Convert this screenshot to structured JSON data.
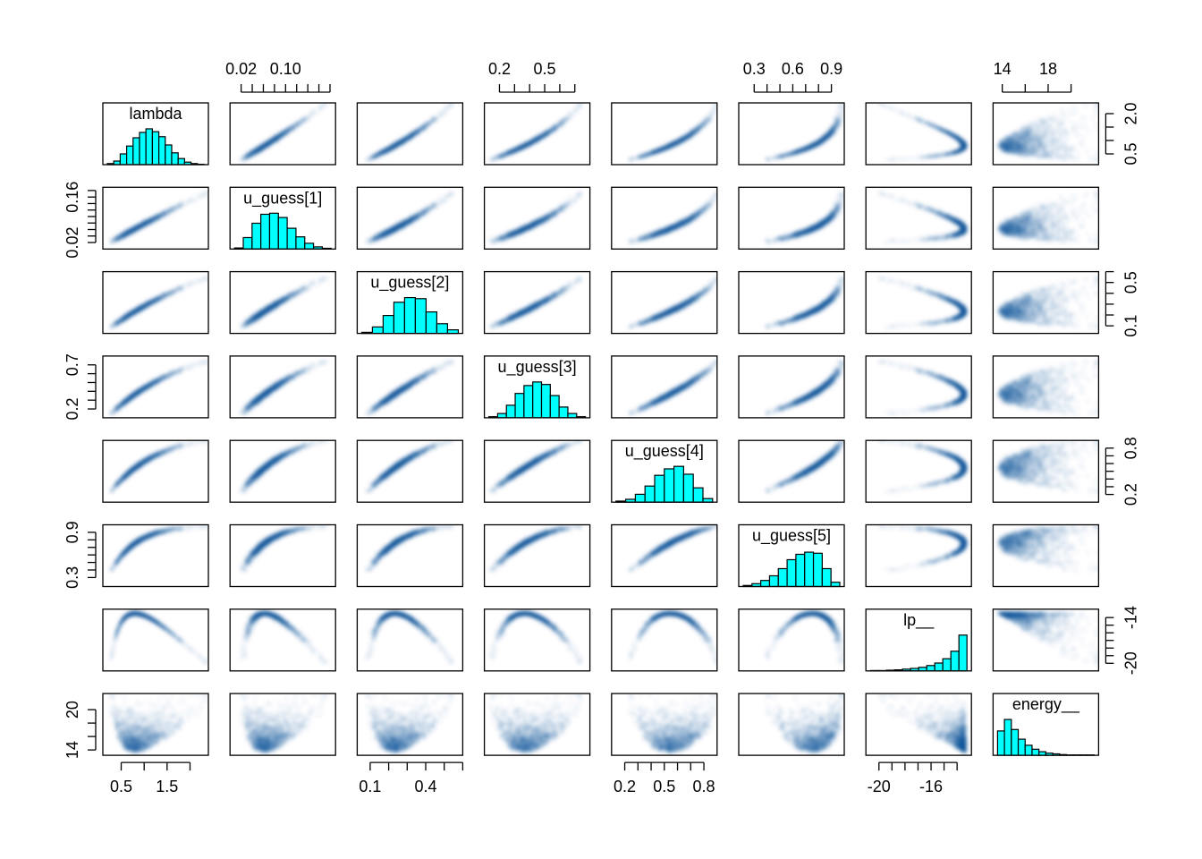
{
  "chart_data": {
    "type": "scatter",
    "subtype": "pairs-matrix",
    "point_color": "#08519C",
    "histogram_color": "#00FFFF",
    "variables": [
      {
        "name": "lambda",
        "range": [
          0.1,
          2.4
        ],
        "ticks": [
          0.5,
          1.0,
          1.5,
          2.0
        ],
        "tick_labels_bottom": [
          "0.5",
          "1.5"
        ],
        "tick_labels_right": [
          "0.5",
          "2.0"
        ],
        "hist": [
          0.03,
          0.1,
          0.3,
          0.52,
          0.75,
          0.9,
          1.0,
          0.92,
          0.78,
          0.55,
          0.33,
          0.17,
          0.07,
          0.03,
          0.01
        ]
      },
      {
        "name": "u_guess[1]",
        "range": [
          0.0,
          0.19
        ],
        "ticks": [
          0.02,
          0.04,
          0.06,
          0.08,
          0.1,
          0.12,
          0.14,
          0.16,
          0.18
        ],
        "tick_labels_top": [
          "0.02",
          "0.10"
        ],
        "tick_labels_left": [
          "0.02",
          "0.16"
        ],
        "hist": [
          0.03,
          0.32,
          0.72,
          0.97,
          1.0,
          0.88,
          0.58,
          0.34,
          0.16,
          0.06,
          0.02
        ]
      },
      {
        "name": "u_guess[2]",
        "range": [
          0.03,
          0.6
        ],
        "ticks": [
          0.1,
          0.2,
          0.3,
          0.4,
          0.5,
          0.6
        ],
        "tick_labels_bottom": [
          "0.1",
          "0.4"
        ],
        "tick_labels_right": [
          "0.1",
          "0.5"
        ],
        "hist": [
          0.03,
          0.18,
          0.5,
          0.87,
          1.0,
          0.97,
          0.6,
          0.27,
          0.1
        ]
      },
      {
        "name": "u_guess[3]",
        "range": [
          0.1,
          0.8
        ],
        "ticks": [
          0.2,
          0.3,
          0.4,
          0.5,
          0.6,
          0.7
        ],
        "tick_labels_top": [
          "0.2",
          "0.5"
        ],
        "tick_labels_left": [
          "0.2",
          "0.7"
        ],
        "hist": [
          0.03,
          0.12,
          0.35,
          0.68,
          0.9,
          1.0,
          0.93,
          0.62,
          0.3,
          0.12,
          0.03
        ]
      },
      {
        "name": "u_guess[4]",
        "range": [
          0.1,
          0.9
        ],
        "ticks": [
          0.2,
          0.3,
          0.4,
          0.5,
          0.6,
          0.7,
          0.8
        ],
        "tick_labels_bottom": [
          "0.2",
          "0.5",
          "0.8"
        ],
        "tick_labels_right": [
          "0.2",
          "0.8"
        ],
        "hist": [
          0.03,
          0.08,
          0.22,
          0.45,
          0.75,
          0.93,
          1.0,
          0.78,
          0.4,
          0.1
        ]
      },
      {
        "name": "u_guess[5]",
        "range": [
          0.18,
          1.0
        ],
        "ticks": [
          0.3,
          0.4,
          0.5,
          0.6,
          0.7,
          0.8,
          0.9
        ],
        "tick_labels_top": [
          "0.3",
          "0.6",
          "0.9"
        ],
        "tick_labels_left": [
          "0.3",
          "0.9"
        ],
        "hist": [
          0.03,
          0.08,
          0.17,
          0.3,
          0.5,
          0.75,
          0.9,
          0.96,
          0.93,
          0.5,
          0.12
        ]
      },
      {
        "name": "lp__",
        "range": [
          -21.0,
          -12.9
        ],
        "ticks": [
          -20,
          -19,
          -18,
          -17,
          -16,
          -15,
          -14
        ],
        "tick_labels_bottom": [
          "-20",
          "-16"
        ],
        "tick_labels_right": [
          "-20",
          "-14"
        ],
        "hist": [
          0.01,
          0.01,
          0.02,
          0.03,
          0.05,
          0.07,
          0.1,
          0.15,
          0.22,
          0.34,
          0.55,
          1.0
        ]
      },
      {
        "name": "energy__",
        "range": [
          13.2,
          22.4
        ],
        "ticks": [
          14,
          16,
          18,
          20
        ],
        "tick_labels_top": [
          "14",
          "18"
        ],
        "tick_labels_left": [
          "14",
          "20"
        ],
        "hist": [
          0.68,
          1.0,
          0.72,
          0.45,
          0.28,
          0.17,
          0.1,
          0.06,
          0.04,
          0.02,
          0.01,
          0.01,
          0.01,
          0.01
        ]
      }
    ]
  }
}
